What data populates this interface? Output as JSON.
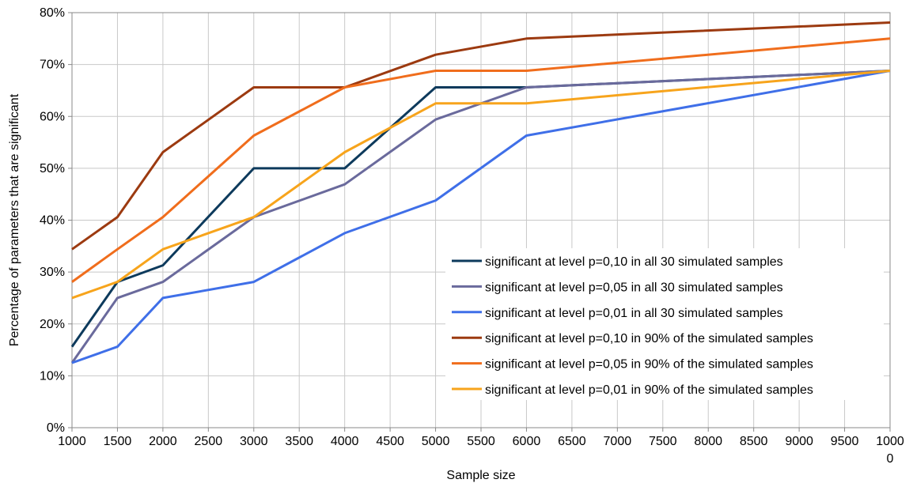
{
  "chart_data": {
    "type": "line",
    "xlabel": "Sample size",
    "ylabel": "Percentage of parameters that are significant",
    "xlim": [
      1000,
      10000
    ],
    "ylim": [
      0,
      80
    ],
    "x_ticks": [
      "1000",
      "1500",
      "2000",
      "2500",
      "3000",
      "3500",
      "4000",
      "4500",
      "5000",
      "5500",
      "6000",
      "6500",
      "7000",
      "7500",
      "8000",
      "8500",
      "9000",
      "9500",
      "1000"
    ],
    "x_tick_continuation": "0",
    "y_ticks": [
      "0%",
      "10%",
      "20%",
      "30%",
      "40%",
      "50%",
      "60%",
      "70%",
      "80%"
    ],
    "x": [
      1000,
      1500,
      2000,
      3000,
      4000,
      5000,
      6000,
      10000
    ],
    "grid": true,
    "legend_position": "inside-right",
    "series": [
      {
        "name": "significant at level p=0,10 in all 30 simulated samples",
        "color": "#0d3a5c",
        "values": [
          15.6,
          28.1,
          31.3,
          50.0,
          50.0,
          65.6,
          65.6,
          68.8
        ]
      },
      {
        "name": "significant at level p=0,05 in all 30 simulated samples",
        "color": "#6a6a9c",
        "values": [
          12.5,
          25.0,
          28.1,
          40.6,
          46.9,
          59.4,
          65.6,
          68.8
        ]
      },
      {
        "name": "significant at level p=0,01 in all 30 simulated samples",
        "color": "#3f6fe8",
        "values": [
          12.5,
          15.6,
          25.0,
          28.1,
          37.5,
          43.8,
          56.3,
          68.8
        ]
      },
      {
        "name": "significant at level p=0,10 in 90% of the simulated samples",
        "color": "#9c3a10",
        "values": [
          34.4,
          40.6,
          53.1,
          65.6,
          65.6,
          71.9,
          75.0,
          78.1
        ]
      },
      {
        "name": "significant at level p=0,05 in 90% of the simulated samples",
        "color": "#f06d1c",
        "values": [
          28.1,
          34.4,
          40.6,
          56.3,
          65.6,
          68.8,
          68.8,
          75.0
        ]
      },
      {
        "name": "significant at level p=0,01 in 90% of the simulated samples",
        "color": "#f7a41c",
        "values": [
          25.0,
          28.1,
          34.4,
          40.6,
          53.1,
          62.5,
          62.5,
          68.8
        ]
      }
    ]
  }
}
